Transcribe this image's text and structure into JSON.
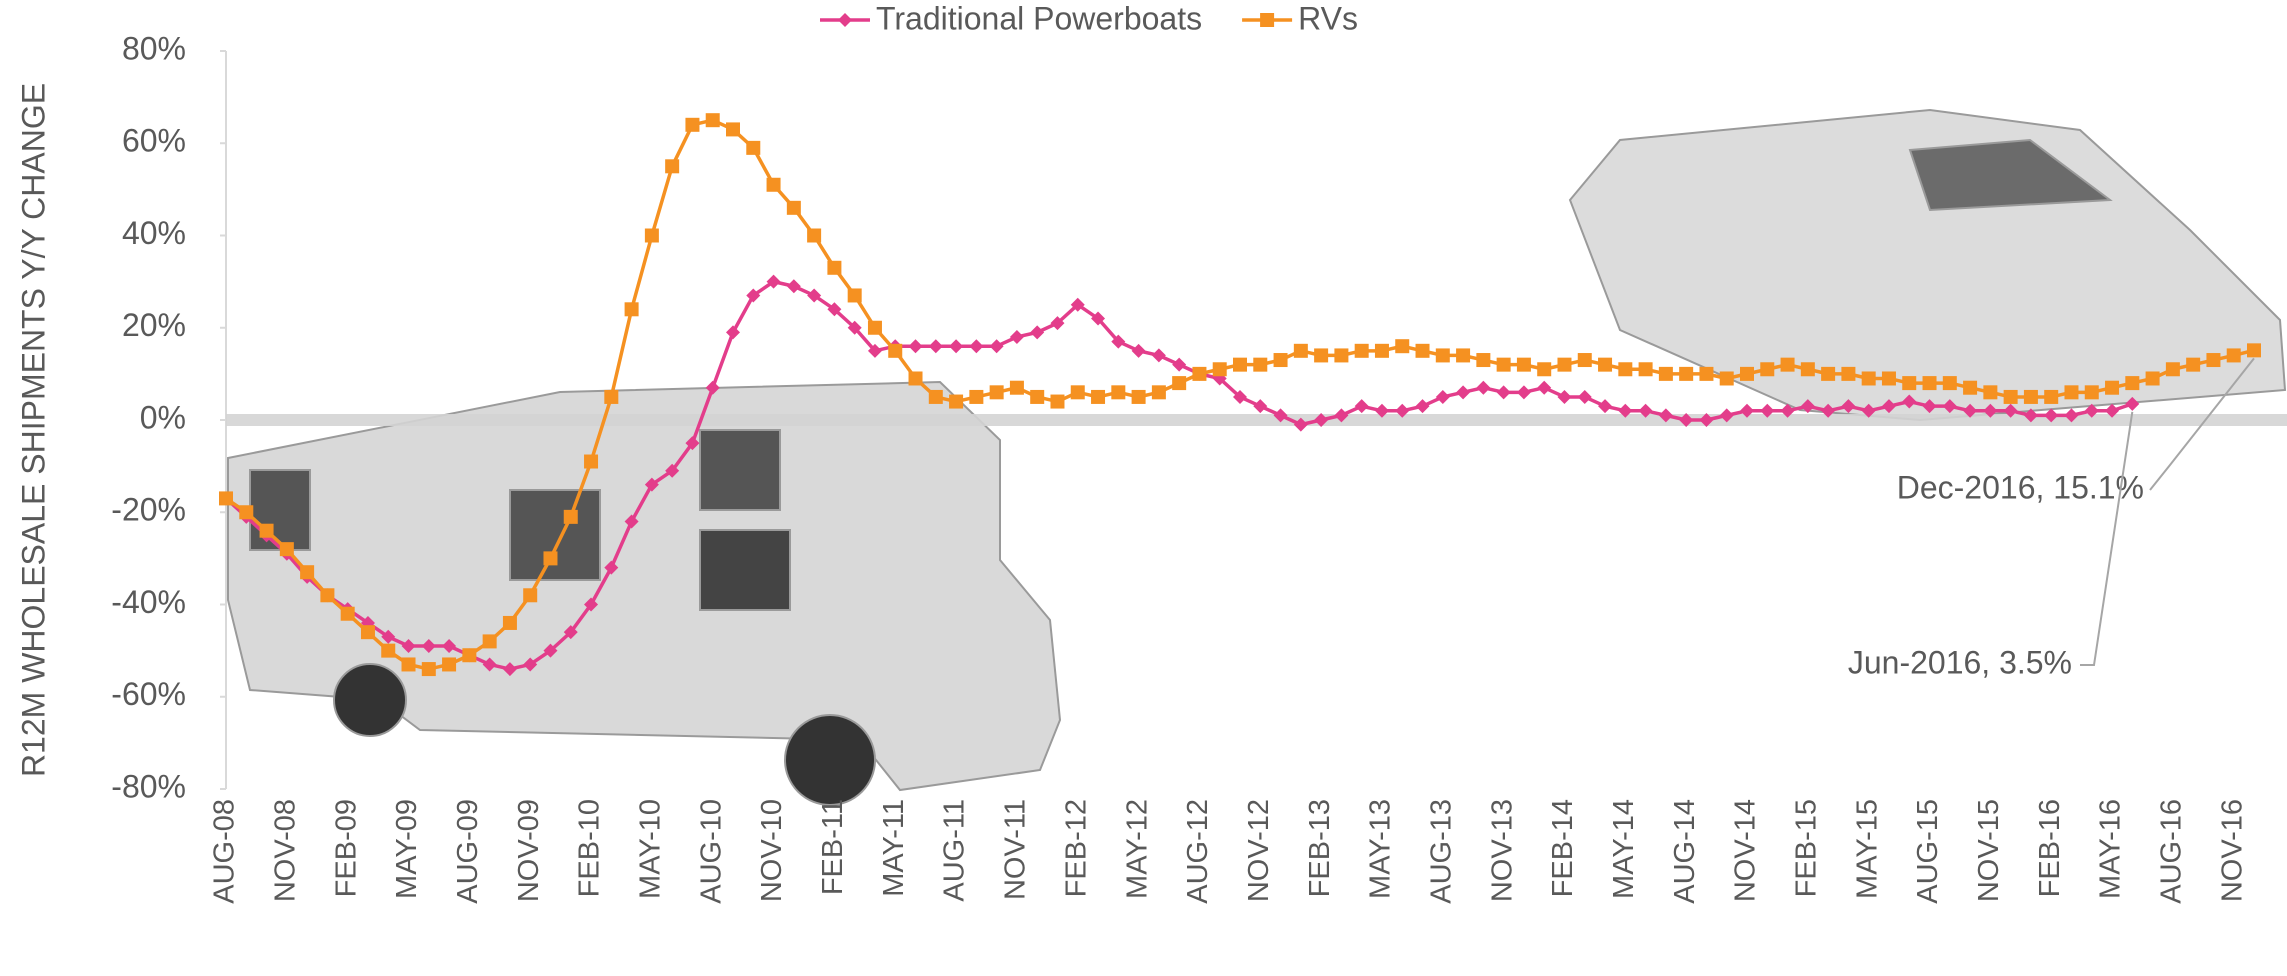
{
  "chart_data": {
    "type": "line",
    "y_label": "R12M WHOLESALE SHIPMENTS Y/Y CHANGE",
    "categories": [
      "AUG-08",
      null,
      null,
      "NOV-08",
      null,
      null,
      "FEB-09",
      null,
      null,
      "MAY-09",
      null,
      null,
      "AUG-09",
      null,
      null,
      "NOV-09",
      null,
      null,
      "FEB-10",
      null,
      null,
      "MAY-10",
      null,
      null,
      "AUG-10",
      null,
      null,
      "NOV-10",
      null,
      null,
      "FEB-11",
      null,
      null,
      "MAY-11",
      null,
      null,
      "AUG-11",
      null,
      null,
      "NOV-11",
      null,
      null,
      "FEB-12",
      null,
      null,
      "MAY-12",
      null,
      null,
      "AUG-12",
      null,
      null,
      "NOV-12",
      null,
      null,
      "FEB-13",
      null,
      null,
      "MAY-13",
      null,
      null,
      "AUG-13",
      null,
      null,
      "NOV-13",
      null,
      null,
      "FEB-14",
      null,
      null,
      "MAY-14",
      null,
      null,
      "AUG-14",
      null,
      null,
      "NOV-14",
      null,
      null,
      "FEB-15",
      null,
      null,
      "MAY-15",
      null,
      null,
      "AUG-15",
      null,
      null,
      "NOV-15",
      null,
      null,
      "FEB-16",
      null,
      null,
      "MAY-16",
      null,
      null,
      "AUG-16",
      null,
      null,
      "NOV-16",
      null
    ],
    "series": [
      {
        "name": "Traditional Powerboats",
        "color": "#e33d8b",
        "marker": "diamond",
        "values": [
          -17,
          -21,
          -25,
          -29,
          -34,
          -38,
          -41,
          -44,
          -47,
          -49,
          -49,
          -49,
          -51,
          -53,
          -54,
          -53,
          -50,
          -46,
          -40,
          -32,
          -22,
          -14,
          -11,
          -5,
          7,
          19,
          27,
          30,
          29,
          27,
          24,
          20,
          15,
          16,
          16,
          16,
          16,
          16,
          16,
          18,
          19,
          21,
          25,
          22,
          17,
          15,
          14,
          12,
          10,
          9,
          5,
          3,
          1,
          -1,
          0,
          1,
          3,
          2,
          2,
          3,
          5,
          6,
          7,
          6,
          6,
          7,
          5,
          5,
          3,
          2,
          2,
          1,
          0,
          0,
          1,
          2,
          2,
          2,
          3,
          2,
          3,
          2,
          3,
          4,
          3,
          3,
          2,
          2,
          2,
          1,
          1,
          1,
          2,
          2,
          3.5,
          null,
          null,
          null,
          null,
          null,
          null
        ]
      },
      {
        "name": "RVs",
        "color": "#f59121",
        "marker": "square",
        "values": [
          -17,
          -20,
          -24,
          -28,
          -33,
          -38,
          -42,
          -46,
          -50,
          -53,
          -54,
          -53,
          -51,
          -48,
          -44,
          -38,
          -30,
          -21,
          -9,
          5,
          24,
          40,
          55,
          64,
          65,
          63,
          59,
          51,
          46,
          40,
          33,
          27,
          20,
          15,
          9,
          5,
          4,
          5,
          6,
          7,
          5,
          4,
          6,
          5,
          6,
          5,
          6,
          8,
          10,
          11,
          12,
          12,
          13,
          15,
          14,
          14,
          15,
          15,
          16,
          15,
          14,
          14,
          13,
          12,
          12,
          11,
          12,
          13,
          12,
          11,
          11,
          10,
          10,
          10,
          9,
          10,
          11,
          12,
          11,
          10,
          10,
          9,
          9,
          8,
          8,
          8,
          7,
          6,
          5,
          5,
          5,
          6,
          6,
          7,
          8,
          9,
          11,
          12,
          13,
          14,
          15.1
        ]
      }
    ],
    "annotations": [
      "Dec-2016, 15.1%",
      "Jun-2016, 3.5%"
    ],
    "ylim": [
      -80,
      80
    ],
    "yticks": [
      {
        "value": -80,
        "label": "-80%"
      },
      {
        "value": -60,
        "label": "-60%"
      },
      {
        "value": -40,
        "label": "-40%"
      },
      {
        "value": -20,
        "label": "-20%"
      },
      {
        "value": 0,
        "label": "0%"
      },
      {
        "value": 20,
        "label": "20%"
      },
      {
        "value": 40,
        "label": "40%"
      },
      {
        "value": 60,
        "label": "60%"
      },
      {
        "value": 80,
        "label": "80%"
      }
    ],
    "legend": "top"
  }
}
